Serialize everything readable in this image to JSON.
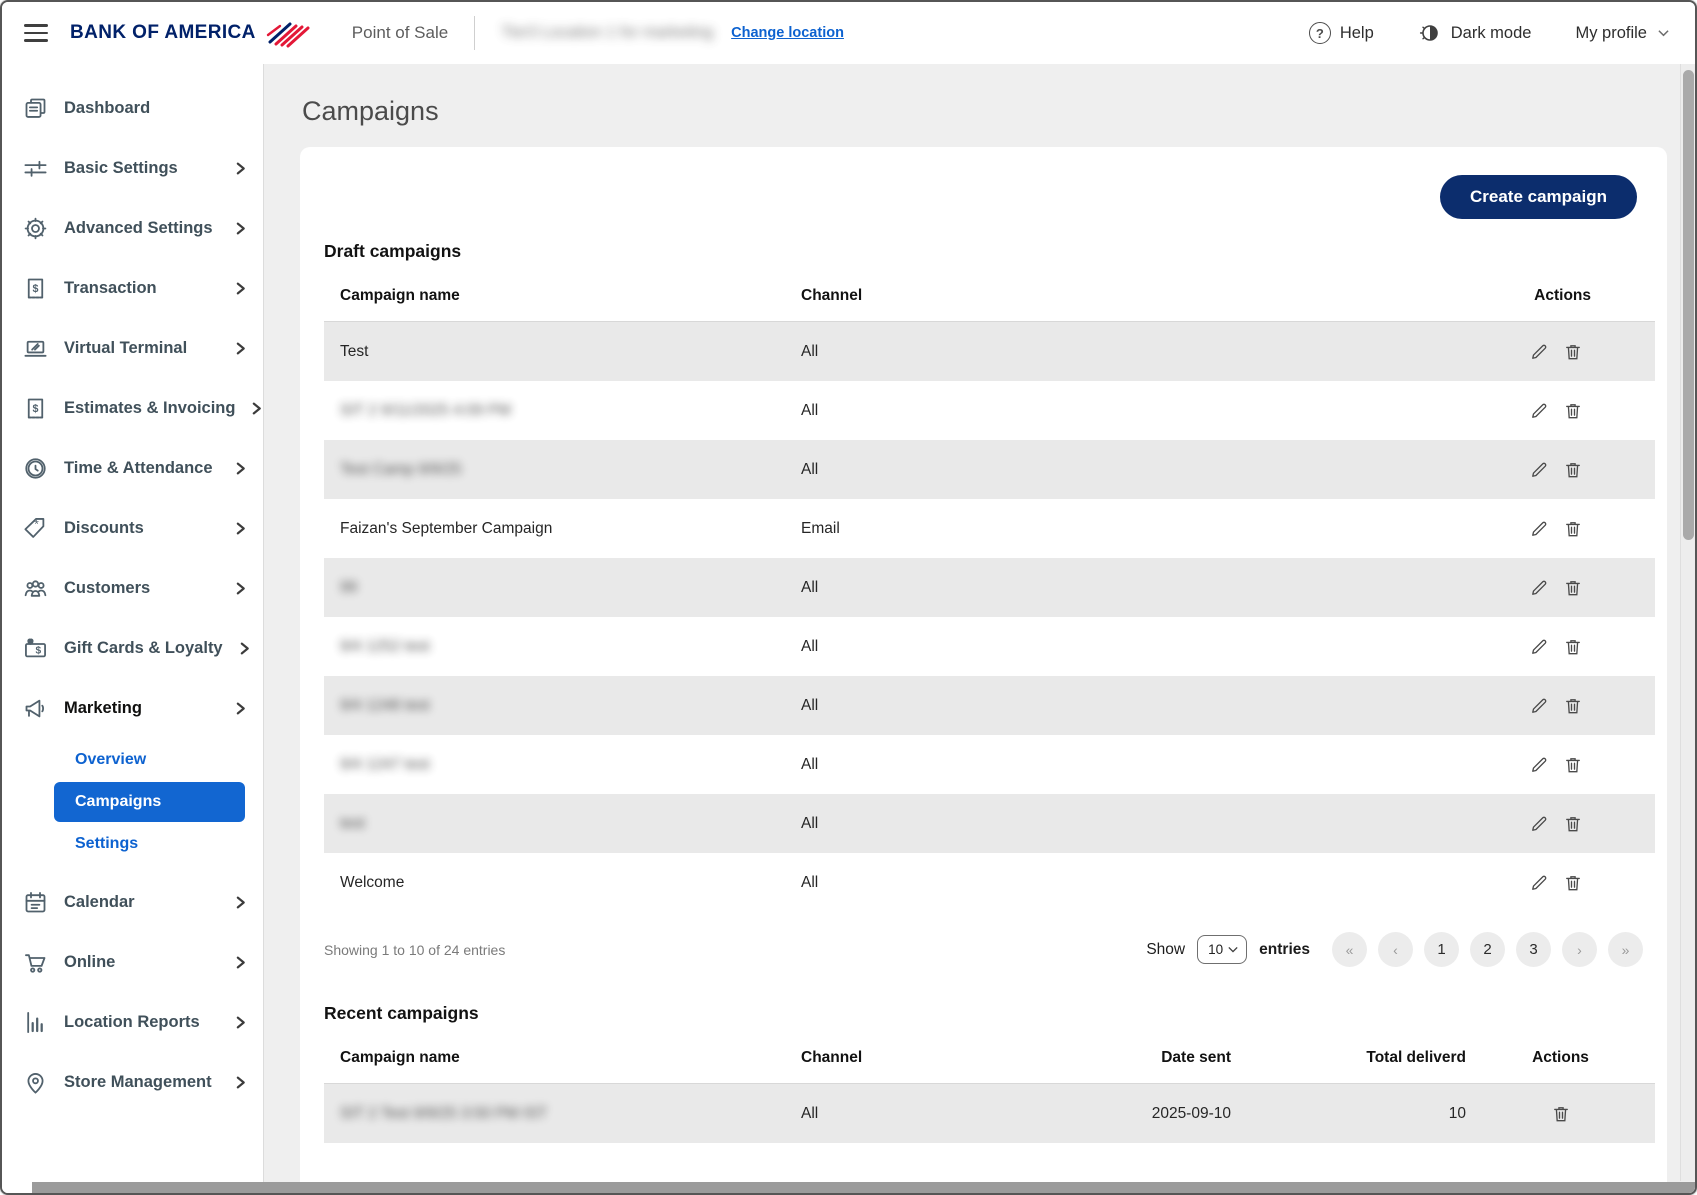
{
  "header": {
    "brand": "BANK OF AMERICA",
    "product": "Point of Sale",
    "location": "Tier3 Location 1 for marketing",
    "location_blurred": true,
    "change_location": "Change location",
    "help": "Help",
    "dark_mode": "Dark mode",
    "my_profile": "My profile"
  },
  "sidebar": {
    "items": [
      {
        "label": "Dashboard",
        "icon": "dashboard-icon",
        "expandable": false
      },
      {
        "label": "Basic Settings",
        "icon": "sliders-icon",
        "expandable": true
      },
      {
        "label": "Advanced Settings",
        "icon": "gear-icon",
        "expandable": true
      },
      {
        "label": "Transaction",
        "icon": "receipt-dollar-icon",
        "expandable": true
      },
      {
        "label": "Virtual Terminal",
        "icon": "laptop-icon",
        "expandable": true
      },
      {
        "label": "Estimates & Invoicing",
        "icon": "invoice-dollar-icon",
        "expandable": true
      },
      {
        "label": "Time & Attendance",
        "icon": "clock-icon",
        "expandable": true
      },
      {
        "label": "Discounts",
        "icon": "discount-tag-icon",
        "expandable": true
      },
      {
        "label": "Customers",
        "icon": "customers-icon",
        "expandable": true
      },
      {
        "label": "Gift Cards & Loyalty",
        "icon": "gift-card-icon",
        "expandable": true
      },
      {
        "label": "Marketing",
        "icon": "megaphone-icon",
        "expandable": true,
        "current": true,
        "submenu": [
          {
            "label": "Overview",
            "active": false
          },
          {
            "label": "Campaigns",
            "active": true
          },
          {
            "label": "Settings",
            "active": false
          }
        ]
      },
      {
        "label": "Calendar",
        "icon": "calendar-icon",
        "expandable": true
      },
      {
        "label": "Online",
        "icon": "cart-icon",
        "expandable": true
      },
      {
        "label": "Location Reports",
        "icon": "bar-chart-icon",
        "expandable": true
      },
      {
        "label": "Store Management",
        "icon": "map-pin-icon",
        "expandable": true
      }
    ]
  },
  "page": {
    "title": "Campaigns",
    "create_button": "Create campaign"
  },
  "draft": {
    "heading": "Draft campaigns",
    "columns": {
      "name": "Campaign name",
      "channel": "Channel",
      "actions": "Actions"
    },
    "rows": [
      {
        "name": "Test",
        "channel": "All",
        "blurred": false
      },
      {
        "name": "SIT 2 9/11/2025 4:09 PM",
        "channel": "All",
        "blurred": true
      },
      {
        "name": "Test Camp 9/9/25",
        "channel": "All",
        "blurred": true
      },
      {
        "name": "Faizan's September Campaign",
        "channel": "Email",
        "blurred": false
      },
      {
        "name": "99",
        "channel": "All",
        "blurred": true
      },
      {
        "name": "9/4 1252 test",
        "channel": "All",
        "blurred": true
      },
      {
        "name": "9/4 1248 test",
        "channel": "All",
        "blurred": true
      },
      {
        "name": "9/4 1247 test",
        "channel": "All",
        "blurred": true
      },
      {
        "name": "test",
        "channel": "All",
        "blurred": true
      },
      {
        "name": "Welcome",
        "channel": "All",
        "blurred": false
      }
    ],
    "footer": {
      "showing": "Showing 1 to 10 of 24 entries",
      "show_label": "Show",
      "page_size": "10",
      "entries_label": "entries",
      "pager": [
        "«",
        "‹",
        "1",
        "2",
        "3",
        "›",
        "»"
      ]
    }
  },
  "recent": {
    "heading": "Recent campaigns",
    "columns": {
      "name": "Campaign name",
      "channel": "Channel",
      "date": "Date sent",
      "total": "Total deliverd",
      "actions": "Actions"
    },
    "rows": [
      {
        "name": "SIT 2 Test 9/9/25 3:50 PM IST",
        "channel": "All",
        "date": "2025-09-10",
        "total": "10",
        "blurred": true
      }
    ]
  },
  "colors": {
    "brand_navy": "#0c2d6d",
    "active_blue": "#1266d1",
    "link_blue": "#0d62d0",
    "row_stripe": "#e9e9e9",
    "main_bg": "#efefef"
  }
}
